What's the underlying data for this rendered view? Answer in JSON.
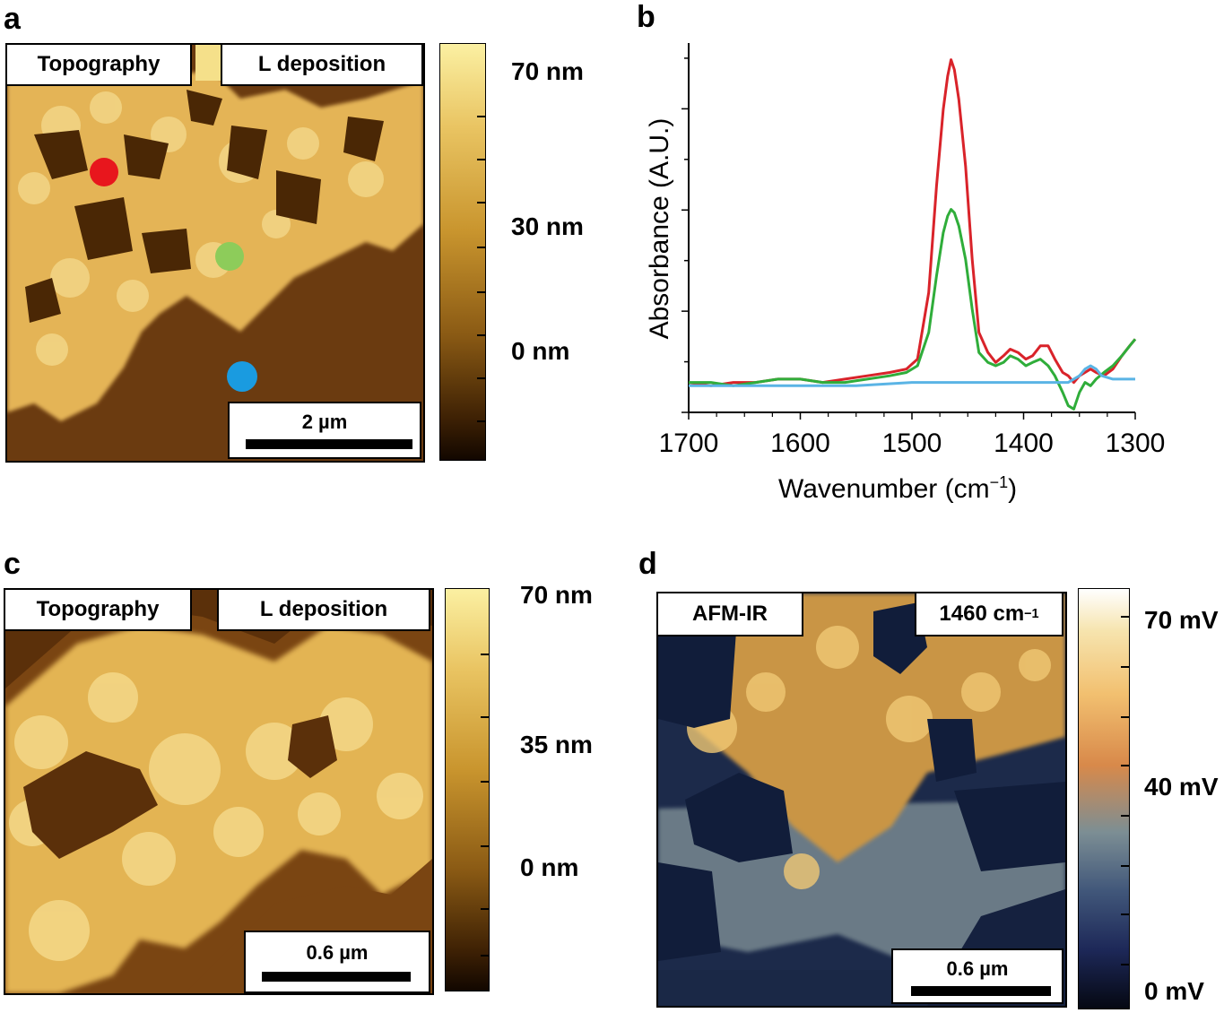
{
  "panels": {
    "a": {
      "letter": "a",
      "label_left": "Topography",
      "label_right": "L deposition",
      "scale_label": "2 µm",
      "colorbar_labels": [
        "70 nm",
        "30 nm",
        "0 nm"
      ]
    },
    "b": {
      "letter": "b",
      "ylabel": "Absorbance (A.U.)",
      "xlabel": "Wavenumber (cm",
      "xlabel_sup": "−1",
      "xlabel_end": ")"
    },
    "c": {
      "letter": "c",
      "label_left": "Topography",
      "label_right": "L deposition",
      "scale_label": "0.6 µm",
      "colorbar_labels": [
        "70 nm",
        "35 nm",
        "0 nm"
      ]
    },
    "d": {
      "letter": "d",
      "label_left": "AFM-IR",
      "label_right": "1460 cm",
      "label_right_sup": "−1",
      "scale_label": "0.6 µm",
      "colorbar_labels": [
        "70 mV",
        "40 mV",
        "0 mV"
      ]
    }
  },
  "markers": {
    "red": "#e8161d",
    "green": "#8dcc5a",
    "blue": "#1a9be0"
  },
  "chart_data": {
    "type": "line",
    "title": "",
    "xlabel": "Wavenumber (cm−1)",
    "ylabel": "Absorbance (A.U.)",
    "xlim": [
      1700,
      1300
    ],
    "ylim": [
      0,
      1
    ],
    "xticks": [
      1700,
      1600,
      1500,
      1400,
      1300
    ],
    "series": [
      {
        "name": "red",
        "color": "#d9232a",
        "x": [
          1700,
          1680,
          1660,
          1640,
          1620,
          1600,
          1580,
          1560,
          1540,
          1520,
          1505,
          1495,
          1485,
          1478,
          1472,
          1468,
          1465,
          1462,
          1458,
          1452,
          1446,
          1440,
          1432,
          1425,
          1418,
          1412,
          1405,
          1398,
          1392,
          1385,
          1378,
          1372,
          1365,
          1360,
          1355,
          1350,
          1345,
          1340,
          1335,
          1328,
          1320,
          1312,
          1305,
          1300
        ],
        "y": [
          0.03,
          0.02,
          0.03,
          0.03,
          0.04,
          0.04,
          0.03,
          0.04,
          0.05,
          0.06,
          0.07,
          0.1,
          0.3,
          0.62,
          0.85,
          0.95,
          1.0,
          0.97,
          0.88,
          0.68,
          0.4,
          0.18,
          0.12,
          0.09,
          0.11,
          0.13,
          0.12,
          0.1,
          0.11,
          0.14,
          0.14,
          0.1,
          0.06,
          0.05,
          0.03,
          0.05,
          0.06,
          0.07,
          0.06,
          0.05,
          0.07,
          0.11,
          0.14,
          0.16
        ]
      },
      {
        "name": "green",
        "color": "#2fad3a",
        "x": [
          1700,
          1680,
          1660,
          1640,
          1620,
          1600,
          1580,
          1560,
          1540,
          1520,
          1505,
          1495,
          1485,
          1478,
          1472,
          1468,
          1465,
          1462,
          1458,
          1452,
          1446,
          1440,
          1432,
          1425,
          1418,
          1412,
          1405,
          1398,
          1392,
          1385,
          1378,
          1372,
          1365,
          1360,
          1355,
          1350,
          1345,
          1340,
          1335,
          1328,
          1320,
          1312,
          1305,
          1300
        ],
        "y": [
          0.03,
          0.03,
          0.02,
          0.03,
          0.04,
          0.04,
          0.03,
          0.03,
          0.04,
          0.05,
          0.06,
          0.08,
          0.18,
          0.35,
          0.48,
          0.53,
          0.55,
          0.54,
          0.5,
          0.4,
          0.25,
          0.12,
          0.09,
          0.08,
          0.09,
          0.11,
          0.1,
          0.08,
          0.09,
          0.1,
          0.08,
          0.05,
          0.0,
          -0.04,
          -0.05,
          0.0,
          0.03,
          0.02,
          0.04,
          0.06,
          0.08,
          0.11,
          0.14,
          0.16
        ]
      },
      {
        "name": "blue",
        "color": "#5ab4e5",
        "x": [
          1700,
          1650,
          1600,
          1550,
          1500,
          1450,
          1400,
          1370,
          1360,
          1350,
          1345,
          1340,
          1335,
          1330,
          1320,
          1310,
          1300
        ],
        "y": [
          0.02,
          0.02,
          0.02,
          0.02,
          0.03,
          0.03,
          0.03,
          0.03,
          0.03,
          0.05,
          0.07,
          0.08,
          0.07,
          0.05,
          0.04,
          0.04,
          0.04
        ]
      }
    ]
  }
}
